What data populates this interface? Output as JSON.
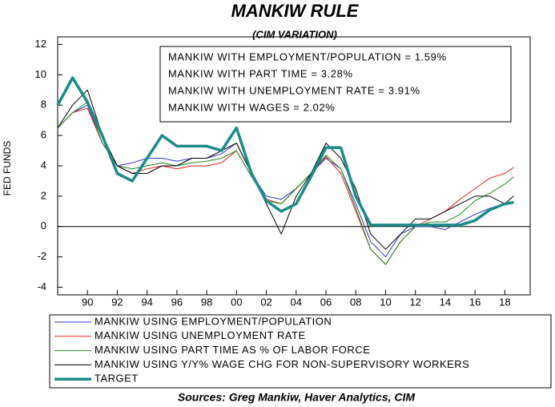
{
  "chart_data": {
    "type": "line",
    "title": "MANKIW RULE",
    "subtitle": "(CIM VARIATION)",
    "y_label": "FED FUNDS",
    "source": "Sources:  Greg Mankiw, Haver Analytics, CIM",
    "annotations": [
      "MANKIW WITH EMPLOYMENT/POPULATION = 1.59%",
      "MANKIW WITH PART TIME = 3.28%",
      "MANKIW WITH UNEMPLOYMENT RATE = 3.91%",
      "MANKIW WITH WAGES = 2.02%"
    ],
    "x": [
      1988,
      1989,
      1990,
      1991,
      1992,
      1993,
      1994,
      1995,
      1996,
      1997,
      1998,
      1999,
      2000,
      2001,
      2002,
      2003,
      2004,
      2005,
      2006,
      2007,
      2008,
      2009,
      2010,
      2011,
      2012,
      2013,
      2014,
      2015,
      2016,
      2017,
      2018,
      2018.6
    ],
    "series": [
      {
        "name": "MANKIW USING EMPLOYMENT/POPULATION",
        "color": "#3333cc",
        "width": 1,
        "values": [
          6.5,
          7.5,
          8,
          5.5,
          4,
          4.2,
          4.5,
          4.5,
          4.3,
          4.5,
          4.5,
          4.8,
          5.5,
          3.5,
          2,
          1.8,
          2.5,
          3.5,
          4.5,
          3.8,
          1.5,
          -1,
          -2,
          -0.5,
          0,
          0,
          -0.2,
          0.3,
          0.8,
          1.2,
          1.5,
          1.59
        ]
      },
      {
        "name": "MANKIW USING UNEMPLOYMENT RATE",
        "color": "#e02020",
        "width": 1,
        "values": [
          6.5,
          7.5,
          7.8,
          5.5,
          4,
          3.5,
          3.8,
          4,
          3.8,
          4,
          4,
          4.2,
          5,
          3.3,
          1.8,
          1.5,
          2.5,
          3.5,
          4.6,
          3.5,
          1,
          -1.5,
          -2.5,
          -1,
          0,
          0.5,
          1,
          1.8,
          2.5,
          3.2,
          3.5,
          3.91
        ]
      },
      {
        "name": "MANKIW USING PART TIME AS % OF LABOR FORCE",
        "color": "#1a8a1a",
        "width": 1,
        "values": [
          6.5,
          7.5,
          8.2,
          5.5,
          4,
          3.8,
          4,
          4.2,
          4,
          4.2,
          4.3,
          4.5,
          5,
          3.3,
          1.7,
          1.5,
          2.5,
          3.5,
          4.7,
          3.8,
          1.2,
          -1.5,
          -2.5,
          -1,
          0,
          0.3,
          0.3,
          0.8,
          1.7,
          2.2,
          2.8,
          3.28
        ]
      },
      {
        "name": "MANKIW USING Y/Y% WAGE CHG FOR NON-SUPERVISORY WORKERS",
        "color": "#000000",
        "width": 1,
        "values": [
          6.5,
          8,
          9,
          6,
          4,
          3.5,
          3.5,
          4,
          4,
          4.5,
          4.5,
          5,
          5.5,
          3.5,
          1.5,
          -0.5,
          2,
          3.5,
          5.5,
          4.5,
          2.5,
          -0.5,
          -1.5,
          -0.5,
          0.5,
          0.5,
          1,
          1.5,
          2,
          2,
          1.5,
          2.02
        ]
      },
      {
        "name": "TARGET",
        "color": "#1b8a8a",
        "width": 3.5,
        "values": [
          8,
          9.8,
          8.2,
          6,
          3.5,
          3,
          4.5,
          6,
          5.3,
          5.3,
          5.3,
          5,
          6.5,
          3.5,
          1.7,
          1,
          1.5,
          3.3,
          5.2,
          5.2,
          2,
          0.1,
          0.1,
          0.1,
          0.1,
          0.1,
          0.1,
          0.1,
          0.4,
          1.1,
          1.5,
          1.6
        ]
      }
    ],
    "xlim": [
      1988,
      2019.7
    ],
    "xticks": [
      {
        "value": 1990,
        "label": "90"
      },
      {
        "value": 1992,
        "label": "92"
      },
      {
        "value": 1994,
        "label": "94"
      },
      {
        "value": 1996,
        "label": "96"
      },
      {
        "value": 1998,
        "label": "98"
      },
      {
        "value": 2000,
        "label": "00"
      },
      {
        "value": 2002,
        "label": "02"
      },
      {
        "value": 2004,
        "label": "04"
      },
      {
        "value": 2006,
        "label": "06"
      },
      {
        "value": 2008,
        "label": "08"
      },
      {
        "value": 2010,
        "label": "10"
      },
      {
        "value": 2012,
        "label": "12"
      },
      {
        "value": 2014,
        "label": "14"
      },
      {
        "value": 2016,
        "label": "16"
      },
      {
        "value": 2018,
        "label": "18"
      }
    ],
    "ylim": [
      -4.5,
      12.5
    ],
    "yticks": [
      -4,
      -2,
      0,
      2,
      4,
      6,
      8,
      10,
      12
    ],
    "grid": false
  }
}
